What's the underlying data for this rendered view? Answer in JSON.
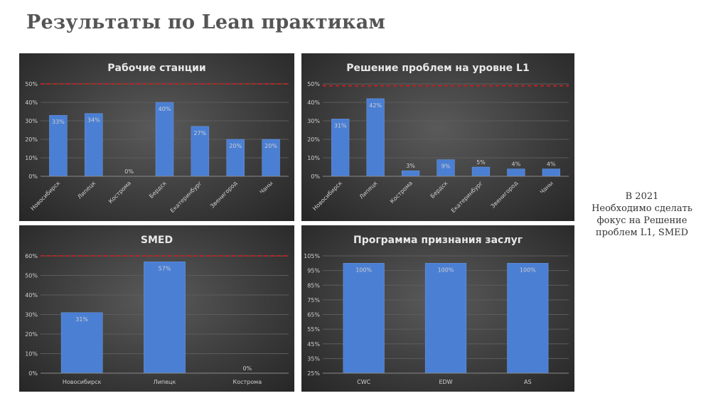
{
  "page": {
    "title": "Результаты по Lean практикам"
  },
  "note": {
    "lines": [
      "В 2021",
      "Необходимо сделать",
      "фокус на Решение",
      "проблем L1, SMED"
    ]
  },
  "colors": {
    "bar": "#4a7fd4",
    "target_line": "#c0211f",
    "text": "#d0d0d0",
    "grid": "#5c5c5c"
  },
  "chart_data": [
    {
      "type": "bar",
      "title": "Рабочие станции",
      "categories": [
        "Новосибирск",
        "Липецк",
        "Кострома",
        "Бердск",
        "Екатеринбург",
        "Звенигород",
        "Чаны"
      ],
      "values": [
        33,
        34,
        0,
        40,
        27,
        20,
        20
      ],
      "value_labels": [
        "33%",
        "34%",
        "0%",
        "40%",
        "27%",
        "20%",
        "20%"
      ],
      "y_ticks": [
        "0%",
        "10%",
        "20%",
        "30%",
        "40%",
        "50%"
      ],
      "ylim": [
        0,
        50
      ],
      "target": 50,
      "rotated_labels": true
    },
    {
      "type": "bar",
      "title": "Решение проблем на уровне L1",
      "categories": [
        "Новосибирск",
        "Липецк",
        "Кострома",
        "Бердск",
        "Екатеринбург",
        "Звенигород",
        "Чаны"
      ],
      "values": [
        31,
        42,
        3,
        9,
        5,
        4,
        4
      ],
      "value_labels": [
        "31%",
        "42%",
        "3%",
        "9%",
        "5%",
        "4%",
        "4%"
      ],
      "y_ticks": [
        "0%",
        "10%",
        "20%",
        "30%",
        "40%",
        "50%"
      ],
      "ylim": [
        0,
        50
      ],
      "target": 49,
      "rotated_labels": true
    },
    {
      "type": "bar",
      "title": "SMED",
      "categories": [
        "Новосибирск",
        "Липецк",
        "Кострома"
      ],
      "values": [
        31,
        57,
        0
      ],
      "value_labels": [
        "31%",
        "57%",
        "0%"
      ],
      "y_ticks": [
        "0%",
        "10%",
        "20%",
        "30%",
        "40%",
        "50%",
        "60%"
      ],
      "ylim": [
        0,
        60
      ],
      "target": 60,
      "rotated_labels": false
    },
    {
      "type": "bar",
      "title": "Программа признания заслуг",
      "categories": [
        "CWC",
        "EDW",
        "AS"
      ],
      "values": [
        100,
        100,
        100
      ],
      "value_labels": [
        "100%",
        "100%",
        "100%"
      ],
      "y_ticks": [
        "25%",
        "35%",
        "45%",
        "55%",
        "65%",
        "75%",
        "85%",
        "95%",
        "105%"
      ],
      "ylim": [
        25,
        105
      ],
      "target": null,
      "rotated_labels": false
    }
  ]
}
